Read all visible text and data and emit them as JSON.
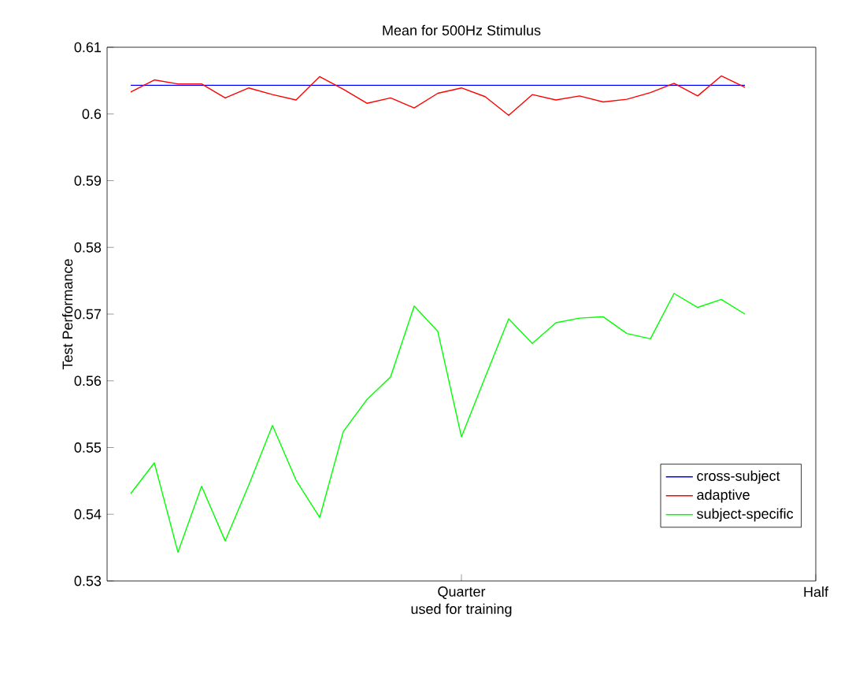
{
  "chart_data": {
    "type": "line",
    "title": "Mean for 500Hz Stimulus",
    "xlabel": "used for training",
    "ylabel": "Test Performance",
    "categories": [
      null,
      null,
      null,
      null,
      null,
      null,
      null,
      null,
      null,
      null,
      null,
      null,
      null,
      null,
      null,
      "Quarter",
      null,
      null,
      null,
      null,
      null,
      null,
      null,
      null,
      null,
      null,
      null,
      null,
      null,
      null,
      "Half"
    ],
    "series": [
      {
        "name": "cross-subject",
        "color": "#0000ff",
        "values": [
          null,
          0.6043,
          0.6043,
          0.6043,
          0.6043,
          0.6043,
          0.6043,
          0.6043,
          0.6043,
          0.6043,
          0.6043,
          0.6043,
          0.6043,
          0.6043,
          0.6043,
          0.6043,
          0.6043,
          0.6043,
          0.6043,
          0.6043,
          0.6043,
          0.6043,
          0.6043,
          0.6043,
          0.6043,
          0.6043,
          0.6043,
          0.6043,
          null,
          null,
          null
        ]
      },
      {
        "name": "adaptive",
        "color": "#ff0000",
        "values": [
          null,
          0.6033,
          0.6051,
          0.6045,
          0.6045,
          0.6024,
          0.6039,
          0.6029,
          0.6021,
          0.6056,
          0.6037,
          0.6016,
          0.6024,
          0.6009,
          0.6031,
          0.6039,
          0.6026,
          0.5998,
          0.6029,
          0.6021,
          0.6027,
          0.6018,
          0.6022,
          0.6032,
          0.6046,
          0.6027,
          0.6057,
          0.604,
          null,
          null,
          null
        ]
      },
      {
        "name": "subject-specific",
        "color": "#00ff00",
        "values": [
          null,
          0.5431,
          0.5477,
          0.5343,
          0.5442,
          0.536,
          0.5444,
          0.5533,
          0.5451,
          0.5395,
          0.5524,
          0.5572,
          0.5606,
          0.5712,
          0.5674,
          0.5516,
          0.5605,
          0.5693,
          0.5656,
          0.5687,
          0.5694,
          0.5696,
          0.5671,
          0.5663,
          0.5731,
          0.571,
          0.5722,
          0.57,
          null,
          null,
          null
        ]
      }
    ],
    "ylim": [
      0.53,
      0.61
    ],
    "yticks": [
      {
        "value": 0.53,
        "label": "0.53"
      },
      {
        "value": 0.54,
        "label": "0.54"
      },
      {
        "value": 0.55,
        "label": "0.55"
      },
      {
        "value": 0.56,
        "label": "0.56"
      },
      {
        "value": 0.57,
        "label": "0.57"
      },
      {
        "value": 0.58,
        "label": "0.58"
      },
      {
        "value": 0.59,
        "label": "0.59"
      },
      {
        "value": 0.6,
        "label": "0.6"
      },
      {
        "value": 0.61,
        "label": "0.61"
      }
    ],
    "legend": "bottom right",
    "grid": false,
    "marker": "none",
    "line_style": "solid"
  }
}
